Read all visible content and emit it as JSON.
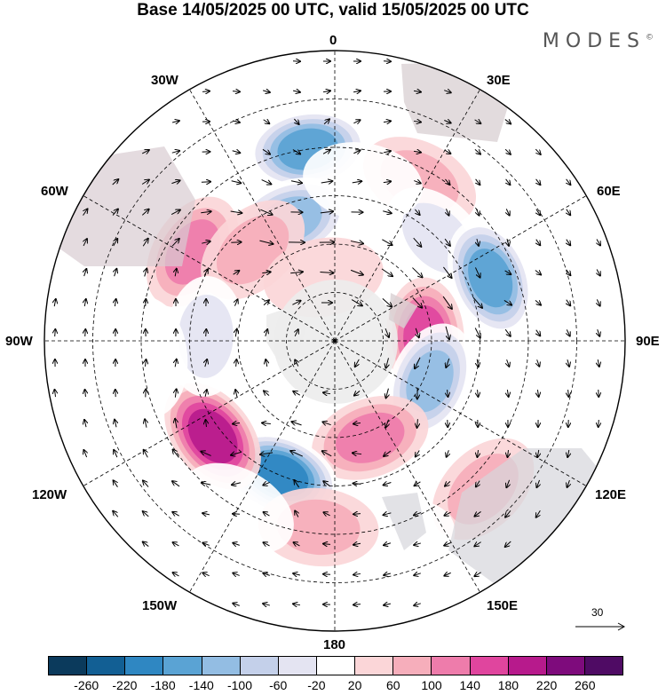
{
  "title": "Base 14/05/2025 00 UTC, valid 15/05/2025 00 UTC",
  "brand": "MODES",
  "brand_mark": "©",
  "longitude_labels": {
    "lon_0": "0",
    "lon_30e": "30E",
    "lon_60e": "60E",
    "lon_90e": "90E",
    "lon_120e": "120E",
    "lon_150e": "150E",
    "lon_180": "180",
    "lon_150w": "150W",
    "lon_120w": "120W",
    "lon_90w": "90W",
    "lon_60w": "60W",
    "lon_30w": "30W"
  },
  "reference_vector": {
    "label": "30"
  },
  "colorbar": {
    "colors": [
      "#0b3a5c",
      "#125f94",
      "#2f87c2",
      "#5aa3d4",
      "#93bde3",
      "#c4d0ea",
      "#e4e4f2",
      "#ffffff",
      "#fbd6d8",
      "#f6aebb",
      "#ee7cab",
      "#e0459e",
      "#b71a8c",
      "#7e0b7c",
      "#4f0b64"
    ],
    "ticks": [
      "-260",
      "-220",
      "-180",
      "-140",
      "-100",
      "-60",
      "-20",
      "20",
      "60",
      "100",
      "140",
      "180",
      "220",
      "260"
    ]
  },
  "anomalies": [
    {
      "lat": -30,
      "lon": -8,
      "value": -190
    },
    {
      "lat": -50,
      "lon": -20,
      "value": -150
    },
    {
      "lat": -38,
      "lon": -58,
      "value": 110
    },
    {
      "lat": -52,
      "lon": -42,
      "value": 80
    },
    {
      "lat": -34,
      "lon": 28,
      "value": 60
    },
    {
      "lat": -45,
      "lon": 45,
      "value": -90
    },
    {
      "lat": -38,
      "lon": 68,
      "value": -180
    },
    {
      "lat": -62,
      "lon": 88,
      "value": 150
    },
    {
      "lat": -58,
      "lon": 113,
      "value": -170
    },
    {
      "lat": -58,
      "lon": 160,
      "value": 110
    },
    {
      "lat": -45,
      "lon": -158,
      "value": -240
    },
    {
      "lat": -42,
      "lon": -128,
      "value": 190
    },
    {
      "lat": -50,
      "lon": -88,
      "value": -60
    },
    {
      "lat": -32,
      "lon": -95,
      "value": -40
    },
    {
      "lat": -25,
      "lon": 135,
      "value": 60
    },
    {
      "lat": -25,
      "lon": 163,
      "value": -30
    },
    {
      "lat": -32,
      "lon": -175,
      "value": 60
    },
    {
      "lat": -40,
      "lon": 10,
      "value": -40
    },
    {
      "lat": -70,
      "lon": -10,
      "value": 40
    },
    {
      "lat": -30,
      "lon": -150,
      "value": -30
    }
  ]
}
